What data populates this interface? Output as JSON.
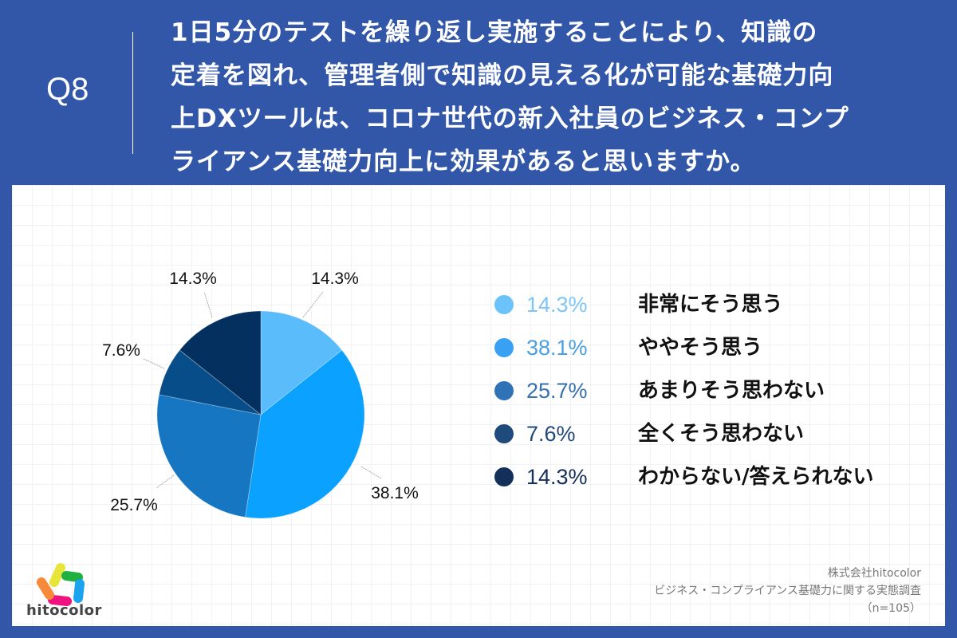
{
  "header": {
    "question_number": "Q8",
    "question_lines": [
      "1日5分のテストを繰り返し実施することにより、知識の",
      "定着を図れ、管理者側で知識の見える化が可能な基礎力向",
      "上DXツールは、コロナ世代の新入社員のビジネス・コンプ",
      "ライアンス基礎力向上に効果があると思いますか。"
    ]
  },
  "chart_data": {
    "type": "pie",
    "title": "1日5分のテストを繰り返し実施することにより、知識の定着を図れ、管理者側で知識の見える化が可能な基礎力向上DXツールは、コロナ世代の新入社員のビジネス・コンプライアンス基礎力向上に効果があると思いますか。",
    "categories": [
      "非常にそう思う",
      "ややそう思う",
      "あまりそう思わない",
      "全くそう思わない",
      "わからない/答えられない"
    ],
    "values": [
      14.3,
      38.1,
      25.7,
      7.6,
      14.3
    ],
    "labels": [
      "14.3%",
      "38.1%",
      "25.7%",
      "7.6%",
      "14.3%"
    ],
    "colors": [
      "#5bbcfb",
      "#0ba2ff",
      "#1776c2",
      "#074d8a",
      "#03305f"
    ],
    "start_angle": "12 o'clock, clockwise",
    "legend_position": "right",
    "n": 105
  },
  "legend": [
    {
      "pct": "14.3%",
      "label": "非常にそう思う",
      "dot_color": "#6cc3fa",
      "pct_color": "#7dc6f5"
    },
    {
      "pct": "38.1%",
      "label": "ややそう思う",
      "dot_color": "#3aa0f2",
      "pct_color": "#4a9fe0"
    },
    {
      "pct": "25.7%",
      "label": "あまりそう思わない",
      "dot_color": "#2f73b6",
      "pct_color": "#3670ad"
    },
    {
      "pct": "7.6%",
      "label": "全くそう思わない",
      "dot_color": "#1e4a7c",
      "pct_color": "#22487a"
    },
    {
      "pct": "14.3%",
      "label": "わからない/答えられない",
      "dot_color": "#12305a",
      "pct_color": "#163057"
    }
  ],
  "footer": {
    "logo_text": "hitocolor",
    "source_lines": [
      "株式会社hitocolor",
      "ビジネス・コンプライアンス基礎力に関する実態調査",
      "（n=105）"
    ]
  }
}
